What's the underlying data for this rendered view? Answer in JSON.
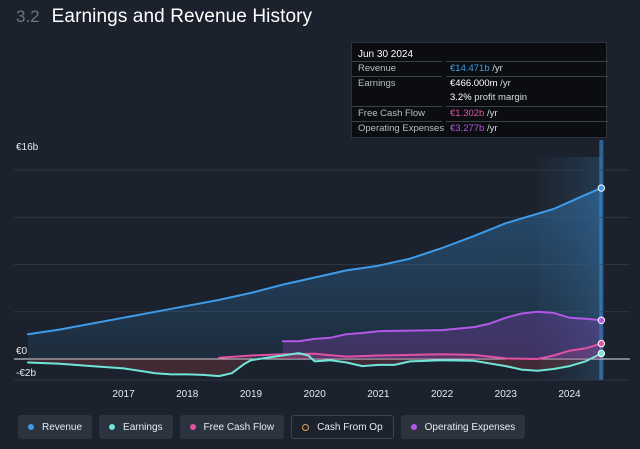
{
  "header": {
    "section": "3.2",
    "title": "Earnings and Revenue History"
  },
  "tooltip": {
    "date": "Jun 30 2024",
    "rows": [
      {
        "label": "Revenue",
        "value": "€14.471b",
        "unit": " /yr",
        "color": "#3d9be9"
      },
      {
        "label": "Earnings",
        "value": "€466.000m",
        "unit": " /yr",
        "color": "#ffffff"
      },
      {
        "label": "Free Cash Flow",
        "value": "€1.302b",
        "unit": " /yr",
        "color": "#e051a4"
      },
      {
        "label": "Operating Expenses",
        "value": "€3.277b",
        "unit": " /yr",
        "color": "#b158e6"
      }
    ],
    "margin_value": "3.2%",
    "margin_label": " profit margin"
  },
  "legend": [
    {
      "label": "Revenue",
      "color": "#3d9be9",
      "style": "filled"
    },
    {
      "label": "Earnings",
      "color": "#6fe6d8",
      "style": "filled"
    },
    {
      "label": "Free Cash Flow",
      "color": "#e051a4",
      "style": "filled"
    },
    {
      "label": "Cash From Op",
      "color": "#e6a15a",
      "style": "outlined"
    },
    {
      "label": "Operating Expenses",
      "color": "#b158e6",
      "style": "filled"
    }
  ],
  "chart_data": {
    "type": "area",
    "title": "Earnings and Revenue History",
    "currency": "€",
    "unit": "b",
    "ylim": [
      -2,
      16
    ],
    "y_tick_labels": [
      {
        "value": 16,
        "label": "€16b"
      },
      {
        "value": 0,
        "label": "€0"
      },
      {
        "value": -2,
        "label": "-€2b"
      }
    ],
    "x_tick_labels": [
      "2017",
      "2018",
      "2019",
      "2020",
      "2021",
      "2022",
      "2023",
      "2024"
    ],
    "x_tick_values": [
      2017,
      2018,
      2019,
      2020,
      2021,
      2022,
      2023,
      2024
    ],
    "xlim": [
      2015.5,
      2024.95
    ],
    "grid": true,
    "forecast_band_start": 2023.5,
    "highlight_x": 2024.5,
    "series": [
      {
        "name": "Revenue",
        "color": "#3d9be9",
        "fill": true,
        "points": [
          [
            2015.5,
            2.1
          ],
          [
            2016,
            2.5
          ],
          [
            2016.5,
            3.0
          ],
          [
            2017,
            3.5
          ],
          [
            2017.5,
            4.0
          ],
          [
            2018,
            4.5
          ],
          [
            2018.5,
            5.0
          ],
          [
            2019,
            5.6
          ],
          [
            2019.5,
            6.3
          ],
          [
            2020,
            6.9
          ],
          [
            2020.5,
            7.5
          ],
          [
            2021,
            7.9
          ],
          [
            2021.5,
            8.5
          ],
          [
            2022,
            9.4
          ],
          [
            2022.5,
            10.4
          ],
          [
            2023,
            11.5
          ],
          [
            2023.5,
            12.3
          ],
          [
            2023.75,
            12.7
          ],
          [
            2024,
            13.3
          ],
          [
            2024.25,
            13.9
          ],
          [
            2024.5,
            14.471
          ]
        ]
      },
      {
        "name": "Operating Expenses",
        "color": "#b158e6",
        "fill": true,
        "points": [
          [
            2019.5,
            1.5
          ],
          [
            2019.75,
            1.5
          ],
          [
            2020,
            1.7
          ],
          [
            2020.25,
            1.8
          ],
          [
            2020.5,
            2.1
          ],
          [
            2020.75,
            2.2
          ],
          [
            2021,
            2.35
          ],
          [
            2021.5,
            2.4
          ],
          [
            2022,
            2.45
          ],
          [
            2022.5,
            2.7
          ],
          [
            2022.75,
            3.0
          ],
          [
            2023,
            3.5
          ],
          [
            2023.25,
            3.85
          ],
          [
            2023.5,
            4.0
          ],
          [
            2023.75,
            3.9
          ],
          [
            2024,
            3.5
          ],
          [
            2024.25,
            3.4
          ],
          [
            2024.5,
            3.277
          ]
        ]
      },
      {
        "name": "Free Cash Flow",
        "color": "#e051a4",
        "fill": true,
        "points": [
          [
            2018.5,
            0.1
          ],
          [
            2019,
            0.3
          ],
          [
            2019.5,
            0.4
          ],
          [
            2020,
            0.45
          ],
          [
            2020.5,
            0.2
          ],
          [
            2021,
            0.3
          ],
          [
            2021.5,
            0.35
          ],
          [
            2022,
            0.4
          ],
          [
            2022.5,
            0.35
          ],
          [
            2023,
            0.05
          ],
          [
            2023.5,
            0.0
          ],
          [
            2023.75,
            0.3
          ],
          [
            2024,
            0.7
          ],
          [
            2024.25,
            0.9
          ],
          [
            2024.5,
            1.302
          ]
        ]
      },
      {
        "name": "Earnings",
        "color": "#6fe6d8",
        "fill": true,
        "points": [
          [
            2015.5,
            -0.3
          ],
          [
            2016,
            -0.4
          ],
          [
            2016.5,
            -0.6
          ],
          [
            2017,
            -0.8
          ],
          [
            2017.5,
            -1.2
          ],
          [
            2017.75,
            -1.3
          ],
          [
            2018,
            -1.3
          ],
          [
            2018.25,
            -1.35
          ],
          [
            2018.5,
            -1.45
          ],
          [
            2018.7,
            -1.2
          ],
          [
            2018.9,
            -0.4
          ],
          [
            2019,
            -0.1
          ],
          [
            2019.25,
            0.1
          ],
          [
            2019.5,
            0.3
          ],
          [
            2019.75,
            0.5
          ],
          [
            2019.9,
            0.3
          ],
          [
            2020,
            -0.2
          ],
          [
            2020.25,
            -0.1
          ],
          [
            2020.5,
            -0.3
          ],
          [
            2020.75,
            -0.6
          ],
          [
            2021,
            -0.5
          ],
          [
            2021.25,
            -0.5
          ],
          [
            2021.5,
            -0.2
          ],
          [
            2022,
            -0.1
          ],
          [
            2022.5,
            -0.15
          ],
          [
            2023,
            -0.6
          ],
          [
            2023.25,
            -0.9
          ],
          [
            2023.5,
            -1.0
          ],
          [
            2023.75,
            -0.85
          ],
          [
            2024,
            -0.6
          ],
          [
            2024.25,
            -0.2
          ],
          [
            2024.5,
            0.466
          ]
        ]
      }
    ]
  }
}
